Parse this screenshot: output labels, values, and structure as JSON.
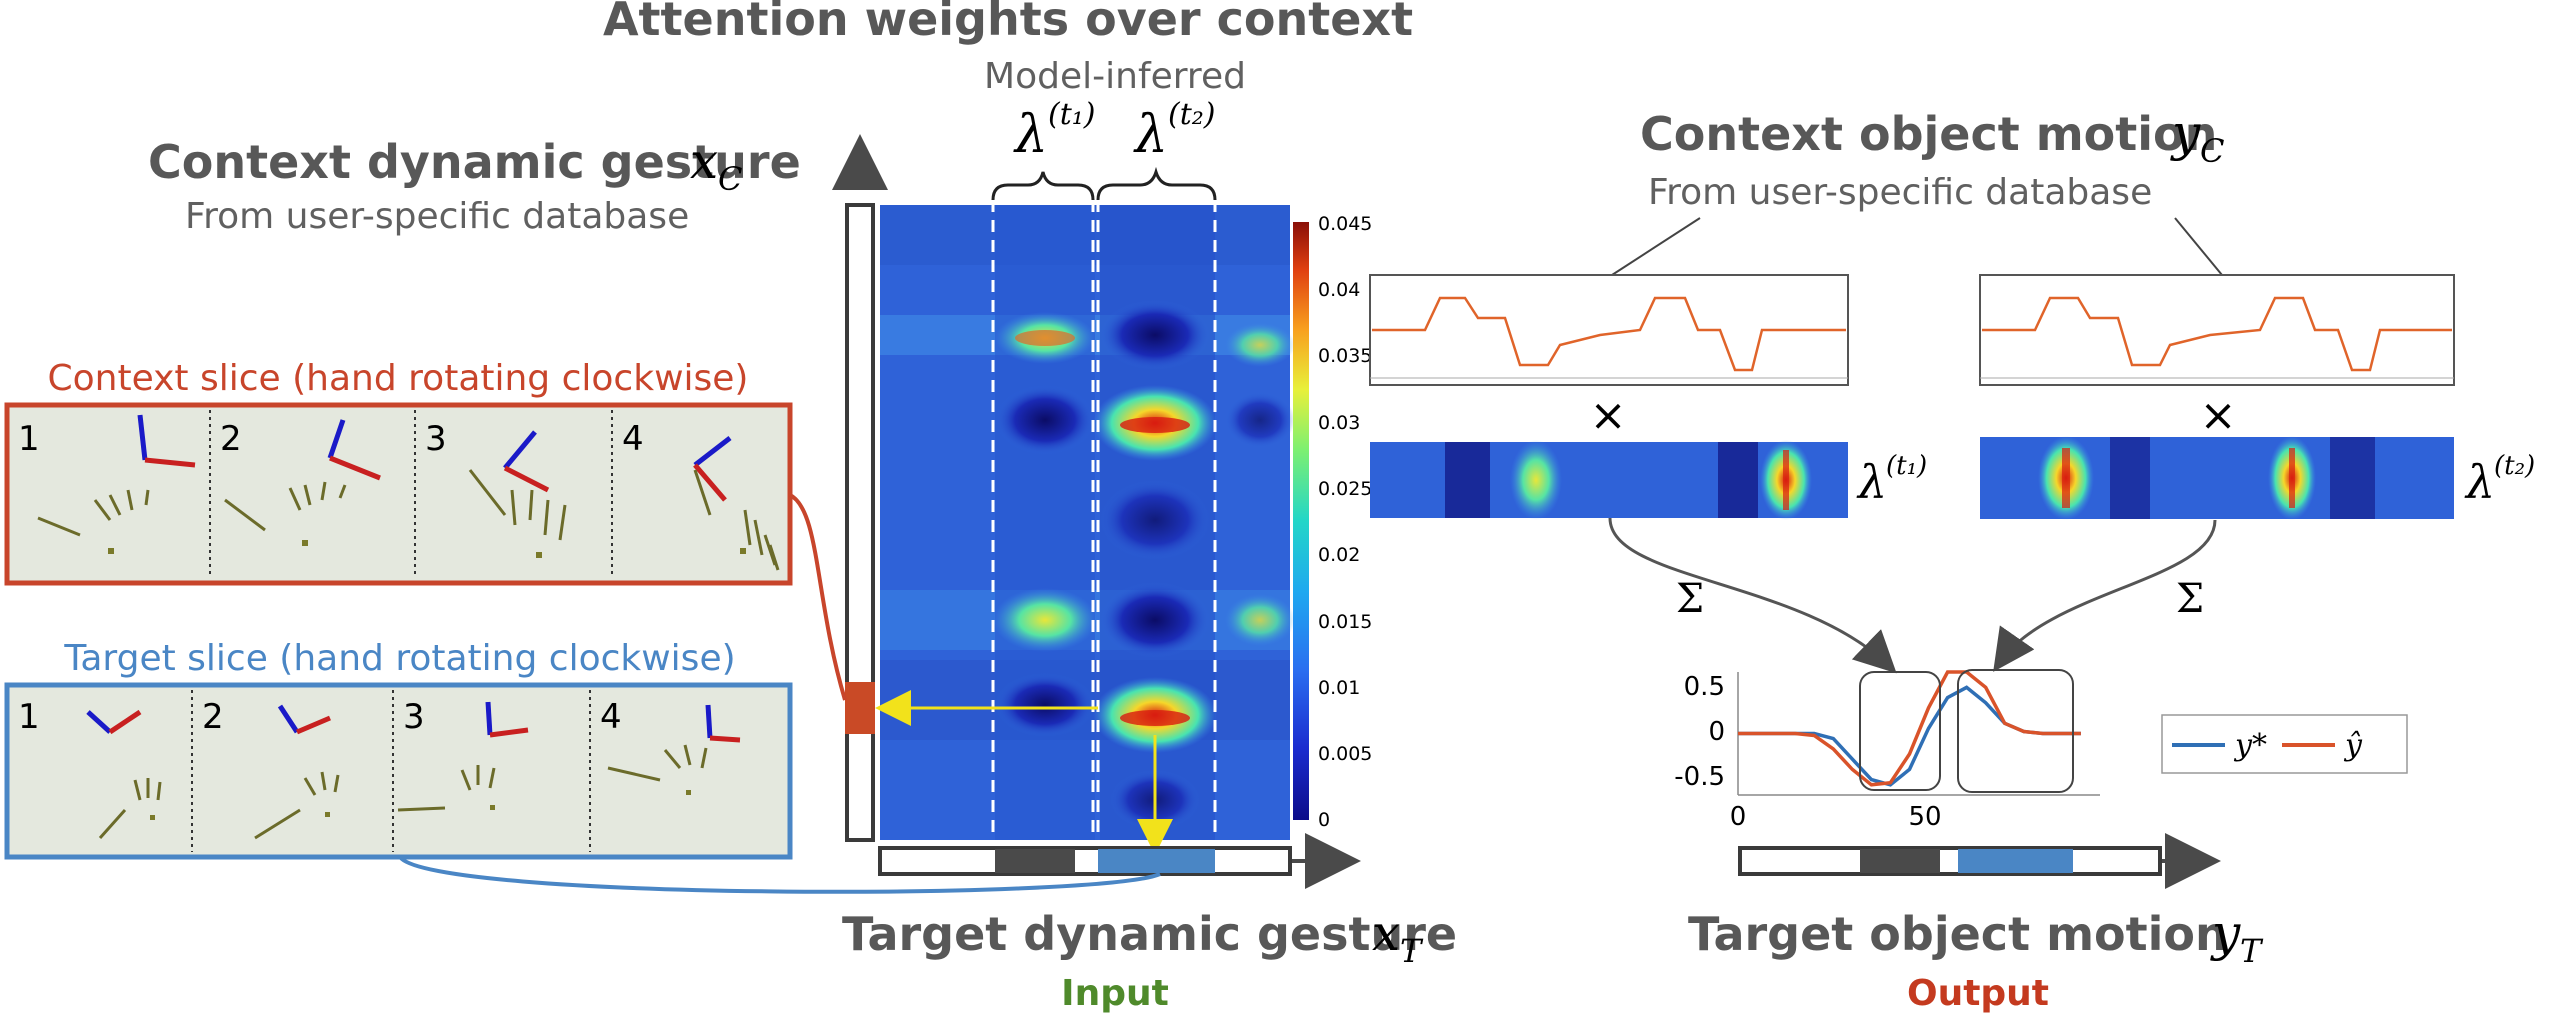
{
  "title": "Attention weights over context",
  "subtitle": "Model-inferred",
  "lambda_t1": "λ",
  "lambda_t1_sup": "(t₁)",
  "lambda_t2": "λ",
  "lambda_t2_sup": "(t₂)",
  "context_gesture": {
    "title": "Context dynamic gesture",
    "var": "x",
    "var_sub": "C",
    "subtitle": "From user-specific database"
  },
  "context_motion": {
    "title": "Context object motion",
    "var": "y",
    "var_sub": "C",
    "subtitle": "From user-specific database"
  },
  "context_slice": {
    "title": "Context slice (hand rotating clockwise)",
    "color": "#c8452b",
    "frames": [
      "1",
      "2",
      "3",
      "4"
    ]
  },
  "target_slice": {
    "title": "Target slice (hand rotating clockwise)",
    "color": "#4a86c5",
    "frames": [
      "1",
      "2",
      "3",
      "4"
    ]
  },
  "target_gesture": {
    "title": "Target dynamic gesture",
    "var": "x",
    "var_sub": "T",
    "tag": "Input",
    "tag_color": "#4f8a2b"
  },
  "target_motion": {
    "title": "Target object motion",
    "var": "y",
    "var_sub": "T",
    "tag": "Output",
    "tag_color": "#c43a1f"
  },
  "colorbar": {
    "ticks": [
      "0.045",
      "0.04",
      "0.035",
      "0.03",
      "0.025",
      "0.02",
      "0.015",
      "0.01",
      "0.005",
      "0"
    ]
  },
  "operators": {
    "times": "×",
    "sum": "Σ"
  },
  "chart_data": {
    "type": "line",
    "x": [
      0,
      5,
      10,
      15,
      20,
      25,
      30,
      35,
      40,
      45,
      50,
      55,
      60,
      65,
      70,
      75,
      80,
      85,
      90
    ],
    "xticks": [
      "0",
      "50"
    ],
    "yticks": [
      "0.5",
      "0",
      "-0.5"
    ],
    "ylim": [
      -0.6,
      0.6
    ],
    "xlim": [
      0,
      95
    ],
    "series": [
      {
        "name": "y*",
        "color": "#2f6fb5",
        "values": [
          0,
          0,
          0,
          0,
          0,
          -0.05,
          -0.25,
          -0.45,
          -0.5,
          -0.35,
          0.05,
          0.35,
          0.45,
          0.3,
          0.1,
          0.02,
          0,
          0,
          0
        ]
      },
      {
        "name": "ŷ",
        "color": "#d9532a",
        "values": [
          0,
          0,
          0,
          0,
          -0.02,
          -0.15,
          -0.35,
          -0.5,
          -0.48,
          -0.2,
          0.25,
          0.6,
          0.6,
          0.45,
          0.1,
          0.02,
          0,
          0,
          0
        ]
      }
    ],
    "legend": "right"
  }
}
